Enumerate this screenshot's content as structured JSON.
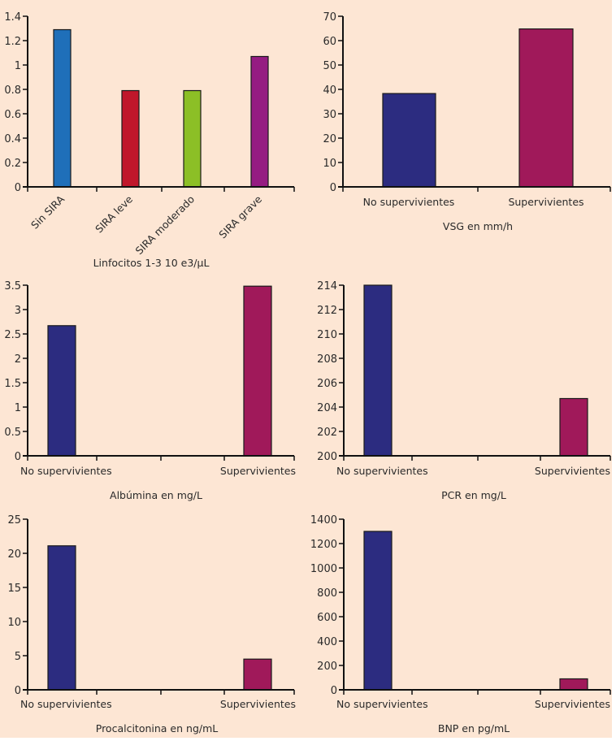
{
  "figure": {
    "background": "#fde6d4"
  },
  "chart_data": [
    {
      "id": "linfocitos",
      "type": "bar",
      "title": "Linfocitos 1-3 10 e3/µL",
      "xlabel": "Linfocitos 1-3 10 e3/µL",
      "ylabel": "",
      "categories": [
        "Sin SIRA",
        "SIRA leve",
        "SIRA moderado",
        "SIRA grave"
      ],
      "values": [
        1.29,
        0.79,
        0.79,
        1.07
      ],
      "colors": [
        "#1f6fb9",
        "#c0172b",
        "#8cbf26",
        "#951c82"
      ],
      "ylim": [
        0,
        1.4
      ],
      "yticks": [
        0,
        0.2,
        0.4,
        0.6,
        0.8,
        1,
        1.2,
        1.4
      ],
      "ytick_labels": [
        "0",
        "0.2",
        "0.4",
        "0.6",
        "0.8",
        "1",
        "1.2",
        "1.4"
      ],
      "category_label_rotation": "diagonal",
      "grid": false
    },
    {
      "id": "vsg",
      "type": "bar",
      "title": "VSG en mm/h",
      "xlabel": "VSG en mm/h",
      "ylabel": "",
      "categories": [
        "No supervivientes",
        "Supervivientes"
      ],
      "values": [
        38.3,
        64.8
      ],
      "colors": [
        "#2c2c80",
        "#a0195a"
      ],
      "ylim": [
        0,
        70
      ],
      "yticks": [
        0,
        10,
        20,
        30,
        40,
        50,
        60,
        70
      ],
      "ytick_labels": [
        "0",
        "10",
        "20",
        "30",
        "40",
        "50",
        "60",
        "70"
      ],
      "grid": false
    },
    {
      "id": "albumina",
      "type": "bar",
      "title": "Albúmina en mg/L",
      "xlabel": "Albúmina en mg/L",
      "ylabel": "",
      "categories": [
        "No supervivientes",
        "Supervivientes"
      ],
      "values": [
        2.67,
        3.48
      ],
      "colors": [
        "#2c2c80",
        "#a0195a"
      ],
      "ylim": [
        0,
        3.5
      ],
      "yticks": [
        0,
        0.5,
        1,
        1.5,
        2,
        2.5,
        3,
        3.5
      ],
      "ytick_labels": [
        "0",
        "0.5",
        "1",
        "1.5",
        "2",
        "2.5",
        "3",
        "3.5"
      ],
      "grid": false
    },
    {
      "id": "pcr",
      "type": "bar",
      "title": "PCR en mg/L",
      "xlabel": "PCR en mg/L",
      "ylabel": "",
      "categories": [
        "No supervivientes",
        "Supervivientes"
      ],
      "values": [
        214,
        204.7
      ],
      "colors": [
        "#2c2c80",
        "#a0195a"
      ],
      "ylim": [
        200,
        214
      ],
      "yticks": [
        200,
        202,
        204,
        206,
        208,
        210,
        212,
        214
      ],
      "ytick_labels": [
        "200",
        "202",
        "204",
        "206",
        "208",
        "210",
        "212",
        "214"
      ],
      "grid": false
    },
    {
      "id": "procalcitonina",
      "type": "bar",
      "title": "Procalcitonina en ng/mL",
      "xlabel": "Procalcitonina en ng/mL",
      "ylabel": "",
      "categories": [
        "No supervivientes",
        "Supervivientes"
      ],
      "values": [
        21.1,
        4.5
      ],
      "colors": [
        "#2c2c80",
        "#a0195a"
      ],
      "ylim": [
        0,
        25
      ],
      "yticks": [
        0,
        5,
        10,
        15,
        20,
        25
      ],
      "ytick_labels": [
        "0",
        "5",
        "10",
        "15",
        "20",
        "25"
      ],
      "grid": false
    },
    {
      "id": "bnp",
      "type": "bar",
      "title": "BNP en pg/mL",
      "xlabel": "BNP en pg/mL",
      "ylabel": "",
      "categories": [
        "No supervivientes",
        "Supervivientes"
      ],
      "values": [
        1300,
        90
      ],
      "colors": [
        "#2c2c80",
        "#a0195a"
      ],
      "ylim": [
        0,
        1400
      ],
      "yticks": [
        0,
        200,
        400,
        600,
        800,
        1000,
        1200,
        1400
      ],
      "ytick_labels": [
        "0",
        "200",
        "400",
        "600",
        "800",
        "1000",
        "1200",
        "1400"
      ],
      "grid": false
    }
  ]
}
